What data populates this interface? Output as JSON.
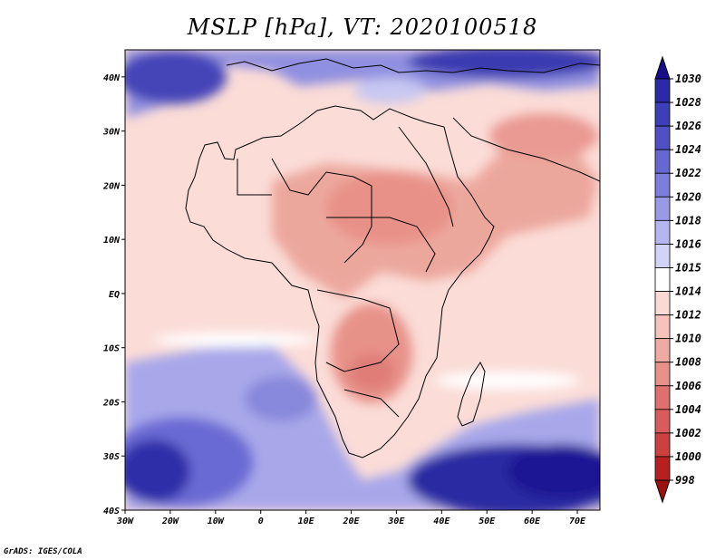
{
  "title": "MSLP [hPa], VT: 2020100518",
  "credit": "GrADS: IGES/COLA",
  "map": {
    "variable": "Mean sea level pressure",
    "units": "hPa",
    "valid_time": "2020100518",
    "lon_range": [
      -30,
      75
    ],
    "lat_range": [
      -40,
      45
    ],
    "x_ticks": [
      "30W",
      "20W",
      "10W",
      "0",
      "10E",
      "20E",
      "30E",
      "40E",
      "50E",
      "60E",
      "70E"
    ],
    "y_ticks": [
      "40N",
      "30N",
      "20N",
      "10N",
      "EQ",
      "10S",
      "20S",
      "30S",
      "40S"
    ],
    "region": "Africa and surrounding oceans"
  },
  "colorbar": {
    "levels": [
      "1030",
      "1028",
      "1026",
      "1024",
      "1022",
      "1020",
      "1018",
      "1016",
      "1015",
      "1014",
      "1012",
      "1010",
      "1008",
      "1006",
      "1004",
      "1002",
      "1000",
      "998"
    ],
    "colors": [
      "#1a0d8c",
      "#2b2aa6",
      "#3d3fb8",
      "#5050c4",
      "#6767d2",
      "#7d7ddc",
      "#9999e6",
      "#b5b5f0",
      "#d3d3f7",
      "#ffffff",
      "#fbd9d5",
      "#f6c2bc",
      "#efaba3",
      "#e8918a",
      "#e07070",
      "#d85c5c",
      "#cc4040",
      "#b82020",
      "#9e1010"
    ]
  }
}
